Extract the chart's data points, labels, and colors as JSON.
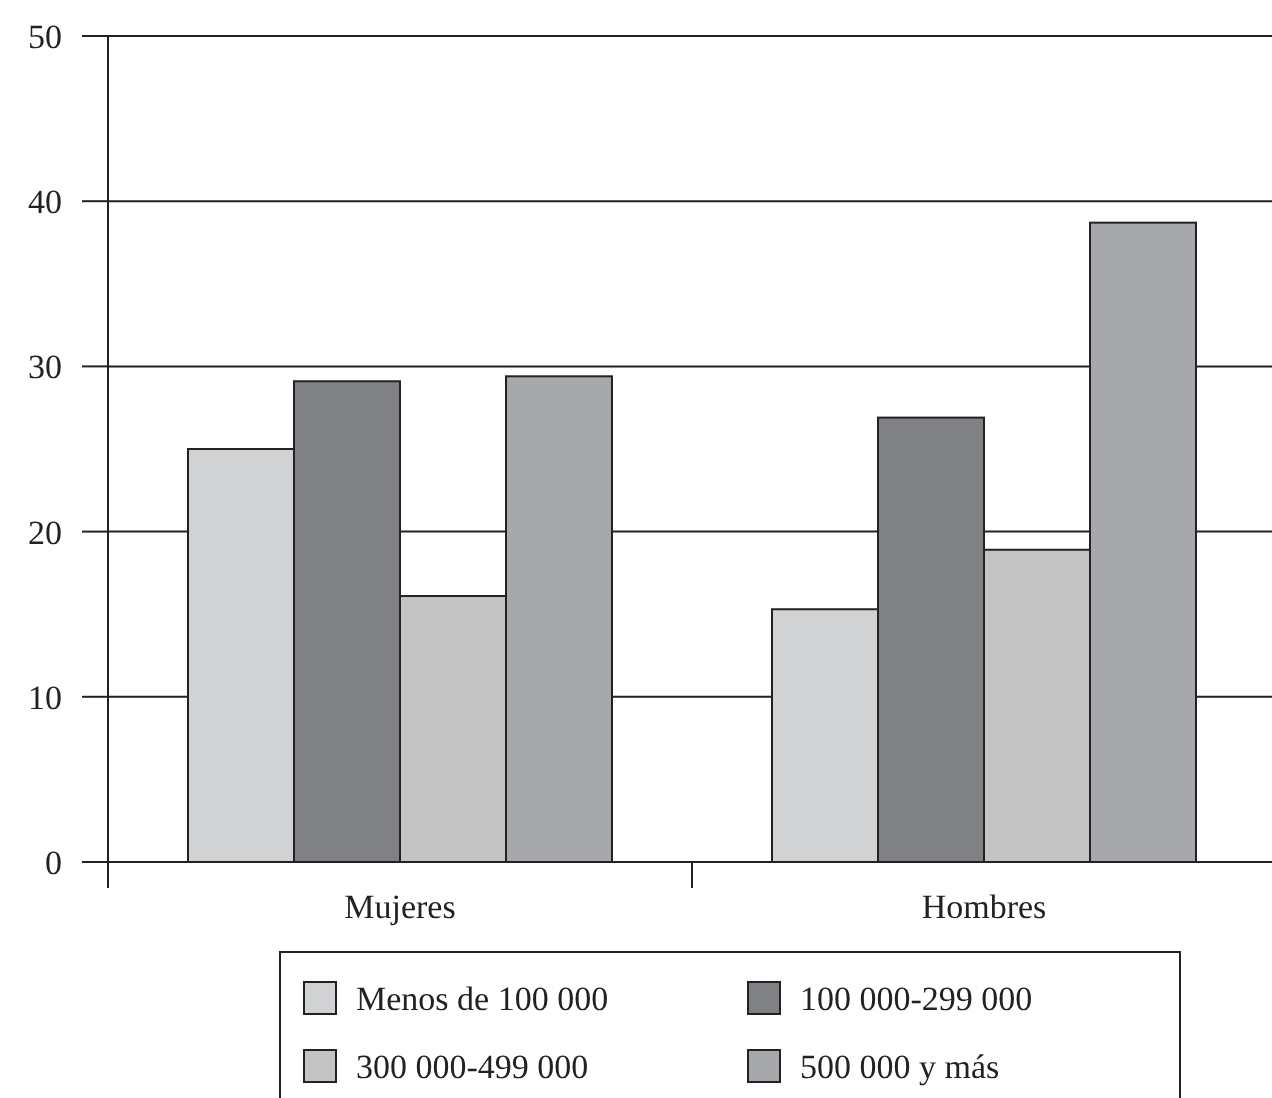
{
  "chart_data": {
    "type": "bar",
    "categories": [
      "Mujeres",
      "Hombres"
    ],
    "series": [
      {
        "name": "Menos de 100 000",
        "color": "#d1d2d4",
        "values": [
          25,
          15.3
        ]
      },
      {
        "name": "100 000-299 000",
        "color": "#808185",
        "values": [
          29.1,
          26.9
        ]
      },
      {
        "name": "300 000-499 000",
        "color": "#c4c4c4",
        "values": [
          16.1,
          18.9
        ]
      },
      {
        "name": "500 000 y más",
        "color": "#a7a8ab",
        "values": [
          29.4,
          38.7
        ]
      }
    ],
    "ylim": [
      0,
      50
    ],
    "yticks": [
      0,
      10,
      20,
      30,
      40,
      50
    ],
    "grid": "y",
    "legend": "bottom"
  }
}
